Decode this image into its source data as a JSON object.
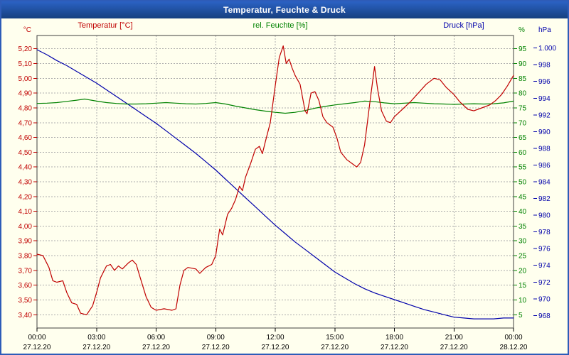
{
  "window": {
    "title": "Temperatur, Feuchte & Druck"
  },
  "chart_data": {
    "type": "line",
    "title": "Temperatur, Feuchte & Druck",
    "grid": true,
    "legend_position": "none",
    "colors": {
      "plot_bg": "#FFFFEE",
      "plot_border": "#404040",
      "grid": "#ADADAD",
      "titlebar": "#16407F",
      "frame": "#2E5CB8",
      "time_text": "#000000"
    },
    "axes": {
      "temperature": {
        "label": "Temperatur [°C]",
        "unit": "°C",
        "color": "#C00000",
        "side": "left",
        "min": 3.31,
        "max": 5.29,
        "tick_values": [
          5.2,
          5.1,
          5.0,
          4.9,
          4.8,
          4.7,
          4.6,
          4.5,
          4.4,
          4.3,
          4.2,
          4.1,
          4.0,
          3.9,
          3.8,
          3.7,
          3.6,
          3.5,
          3.4
        ],
        "tick_labels": [
          "5,20",
          "5,10",
          "5,00",
          "4,90",
          "4,80",
          "4,70",
          "4,60",
          "4,50",
          "4,40",
          "4,30",
          "4,20",
          "4,10",
          "4,00",
          "3,90",
          "3,80",
          "3,70",
          "3,60",
          "3,50",
          "3,40"
        ]
      },
      "humidity": {
        "label": "rel. Feuchte [%]",
        "unit": "%",
        "color": "#008200",
        "side": "right-inner",
        "min": 0.5,
        "max": 99.5,
        "tick_values": [
          95,
          90,
          85,
          80,
          75,
          70,
          65,
          60,
          55,
          50,
          45,
          40,
          35,
          30,
          25,
          20,
          15,
          10,
          5
        ],
        "tick_labels": [
          "95",
          "90",
          "85",
          "80",
          "75",
          "70",
          "65",
          "60",
          "55",
          "50",
          "45",
          "40",
          "35",
          "30",
          "25",
          "20",
          "15",
          "10",
          "5"
        ]
      },
      "pressure": {
        "label": "Druck [hPa]",
        "unit": "hPa",
        "color": "#0000AA",
        "side": "right-outer",
        "min": 966.5,
        "max": 1001.5,
        "tick_values": [
          1000,
          998,
          996,
          994,
          992,
          990,
          988,
          986,
          984,
          982,
          980,
          978,
          976,
          974,
          972,
          970,
          968
        ],
        "tick_labels": [
          "1.000",
          "998",
          "996",
          "994",
          "992",
          "990",
          "988",
          "986",
          "984",
          "982",
          "980",
          "978",
          "976",
          "974",
          "972",
          "970",
          "968"
        ]
      }
    },
    "x_ticks": [
      {
        "hour": 0,
        "time": "00:00",
        "date": "27.12.20"
      },
      {
        "hour": 3,
        "time": "03:00",
        "date": "27.12.20"
      },
      {
        "hour": 6,
        "time": "06:00",
        "date": "27.12.20"
      },
      {
        "hour": 9,
        "time": "09:00",
        "date": "27.12.20"
      },
      {
        "hour": 12,
        "time": "12:00",
        "date": "27.12.20"
      },
      {
        "hour": 15,
        "time": "15:00",
        "date": "27.12.20"
      },
      {
        "hour": 18,
        "time": "18:00",
        "date": "27.12.20"
      },
      {
        "hour": 21,
        "time": "21:00",
        "date": "27.12.20"
      },
      {
        "hour": 24,
        "time": "00:00",
        "date": "28.12.20"
      }
    ],
    "series": [
      {
        "name": "Druck",
        "axis": "pressure",
        "points": [
          [
            0,
            999.8
          ],
          [
            0.5,
            999.2
          ],
          [
            1,
            998.5
          ],
          [
            1.5,
            997.9
          ],
          [
            2,
            997.2
          ],
          [
            2.5,
            996.5
          ],
          [
            3,
            995.8
          ],
          [
            3.5,
            995.0
          ],
          [
            4,
            994.2
          ],
          [
            4.5,
            993.4
          ],
          [
            5,
            992.6
          ],
          [
            5.5,
            991.8
          ],
          [
            6,
            991.0
          ],
          [
            6.5,
            990.1
          ],
          [
            7,
            989.2
          ],
          [
            7.5,
            988.3
          ],
          [
            8,
            987.4
          ],
          [
            8.5,
            986.4
          ],
          [
            9,
            985.4
          ],
          [
            9.5,
            984.3
          ],
          [
            10,
            983.2
          ],
          [
            10.5,
            982.1
          ],
          [
            11,
            981.0
          ],
          [
            11.5,
            979.9
          ],
          [
            12,
            978.8
          ],
          [
            12.5,
            977.8
          ],
          [
            13,
            976.8
          ],
          [
            13.5,
            975.9
          ],
          [
            14,
            975.0
          ],
          [
            14.5,
            974.1
          ],
          [
            15,
            973.2
          ],
          [
            15.5,
            972.5
          ],
          [
            16,
            971.8
          ],
          [
            16.5,
            971.2
          ],
          [
            17,
            970.7
          ],
          [
            17.5,
            970.3
          ],
          [
            18,
            969.9
          ],
          [
            18.5,
            969.5
          ],
          [
            19,
            969.1
          ],
          [
            19.5,
            968.7
          ],
          [
            20,
            968.4
          ],
          [
            20.5,
            968.1
          ],
          [
            21,
            967.8
          ],
          [
            21.5,
            967.7
          ],
          [
            22,
            967.6
          ],
          [
            22.5,
            967.6
          ],
          [
            23,
            967.6
          ],
          [
            23.5,
            967.7
          ],
          [
            24,
            967.7
          ]
        ]
      },
      {
        "name": "rel. Feuchte",
        "axis": "humidity",
        "points": [
          [
            0,
            76.5
          ],
          [
            0.5,
            76.6
          ],
          [
            1,
            76.8
          ],
          [
            1.5,
            77.2
          ],
          [
            2,
            77.6
          ],
          [
            2.4,
            78.0
          ],
          [
            3,
            77.3
          ],
          [
            3.5,
            76.8
          ],
          [
            4,
            76.5
          ],
          [
            4.5,
            76.3
          ],
          [
            5,
            76.3
          ],
          [
            5.5,
            76.4
          ],
          [
            6,
            76.6
          ],
          [
            6.5,
            76.8
          ],
          [
            7,
            76.6
          ],
          [
            7.5,
            76.4
          ],
          [
            8,
            76.3
          ],
          [
            8.5,
            76.5
          ],
          [
            9,
            76.8
          ],
          [
            9.5,
            76.3
          ],
          [
            10,
            75.6
          ],
          [
            10.5,
            75.0
          ],
          [
            11,
            74.4
          ],
          [
            11.5,
            73.9
          ],
          [
            12,
            73.5
          ],
          [
            12.5,
            73.2
          ],
          [
            13,
            73.5
          ],
          [
            13.5,
            74.1
          ],
          [
            14,
            74.9
          ],
          [
            14.5,
            75.5
          ],
          [
            15,
            76.0
          ],
          [
            15.5,
            76.4
          ],
          [
            16,
            76.8
          ],
          [
            16.5,
            77.3
          ],
          [
            17,
            77.1
          ],
          [
            17.5,
            76.7
          ],
          [
            18,
            76.4
          ],
          [
            18.5,
            76.6
          ],
          [
            19,
            76.8
          ],
          [
            19.5,
            76.6
          ],
          [
            20,
            76.4
          ],
          [
            20.5,
            76.3
          ],
          [
            21,
            76.2
          ],
          [
            21.5,
            76.3
          ],
          [
            22,
            76.4
          ],
          [
            22.5,
            76.3
          ],
          [
            23,
            76.4
          ],
          [
            23.5,
            76.7
          ],
          [
            24,
            77.3
          ]
        ]
      },
      {
        "name": "Temperatur",
        "axis": "temperature",
        "points": [
          [
            0,
            3.81
          ],
          [
            0.3,
            3.8
          ],
          [
            0.6,
            3.72
          ],
          [
            0.8,
            3.63
          ],
          [
            1.0,
            3.62
          ],
          [
            1.3,
            3.63
          ],
          [
            1.5,
            3.55
          ],
          [
            1.75,
            3.48
          ],
          [
            2.0,
            3.47
          ],
          [
            2.2,
            3.41
          ],
          [
            2.5,
            3.4
          ],
          [
            2.8,
            3.46
          ],
          [
            3.0,
            3.55
          ],
          [
            3.2,
            3.65
          ],
          [
            3.5,
            3.73
          ],
          [
            3.7,
            3.74
          ],
          [
            3.9,
            3.7
          ],
          [
            4.1,
            3.73
          ],
          [
            4.3,
            3.71
          ],
          [
            4.6,
            3.75
          ],
          [
            4.8,
            3.77
          ],
          [
            5.0,
            3.74
          ],
          [
            5.2,
            3.65
          ],
          [
            5.5,
            3.52
          ],
          [
            5.75,
            3.45
          ],
          [
            6.0,
            3.43
          ],
          [
            6.4,
            3.44
          ],
          [
            6.8,
            3.43
          ],
          [
            7.0,
            3.44
          ],
          [
            7.2,
            3.6
          ],
          [
            7.4,
            3.7
          ],
          [
            7.6,
            3.72
          ],
          [
            8.0,
            3.71
          ],
          [
            8.2,
            3.68
          ],
          [
            8.5,
            3.72
          ],
          [
            8.8,
            3.74
          ],
          [
            9.0,
            3.8
          ],
          [
            9.2,
            3.98
          ],
          [
            9.35,
            3.94
          ],
          [
            9.6,
            4.08
          ],
          [
            9.8,
            4.12
          ],
          [
            10.0,
            4.18
          ],
          [
            10.2,
            4.27
          ],
          [
            10.35,
            4.24
          ],
          [
            10.5,
            4.33
          ],
          [
            10.75,
            4.42
          ],
          [
            11.0,
            4.52
          ],
          [
            11.2,
            4.54
          ],
          [
            11.35,
            4.49
          ],
          [
            11.5,
            4.57
          ],
          [
            11.75,
            4.7
          ],
          [
            12.0,
            4.95
          ],
          [
            12.2,
            5.14
          ],
          [
            12.4,
            5.22
          ],
          [
            12.55,
            5.1
          ],
          [
            12.7,
            5.13
          ],
          [
            12.85,
            5.07
          ],
          [
            13.0,
            5.02
          ],
          [
            13.25,
            4.96
          ],
          [
            13.5,
            4.78
          ],
          [
            13.6,
            4.76
          ],
          [
            13.8,
            4.9
          ],
          [
            14.0,
            4.91
          ],
          [
            14.2,
            4.85
          ],
          [
            14.4,
            4.74
          ],
          [
            14.6,
            4.7
          ],
          [
            14.9,
            4.67
          ],
          [
            15.1,
            4.6
          ],
          [
            15.3,
            4.5
          ],
          [
            15.6,
            4.45
          ],
          [
            15.9,
            4.42
          ],
          [
            16.1,
            4.4
          ],
          [
            16.3,
            4.43
          ],
          [
            16.5,
            4.55
          ],
          [
            16.75,
            4.82
          ],
          [
            17.0,
            5.08
          ],
          [
            17.15,
            4.93
          ],
          [
            17.35,
            4.78
          ],
          [
            17.6,
            4.71
          ],
          [
            17.8,
            4.7
          ],
          [
            18.0,
            4.74
          ],
          [
            18.4,
            4.79
          ],
          [
            18.8,
            4.84
          ],
          [
            19.2,
            4.9
          ],
          [
            19.6,
            4.96
          ],
          [
            20.0,
            5.0
          ],
          [
            20.3,
            4.99
          ],
          [
            20.6,
            4.94
          ],
          [
            21.0,
            4.89
          ],
          [
            21.3,
            4.84
          ],
          [
            21.7,
            4.79
          ],
          [
            22.0,
            4.78
          ],
          [
            22.4,
            4.8
          ],
          [
            22.8,
            4.82
          ],
          [
            23.1,
            4.85
          ],
          [
            23.4,
            4.89
          ],
          [
            23.7,
            4.95
          ],
          [
            24.0,
            5.02
          ]
        ]
      }
    ]
  }
}
